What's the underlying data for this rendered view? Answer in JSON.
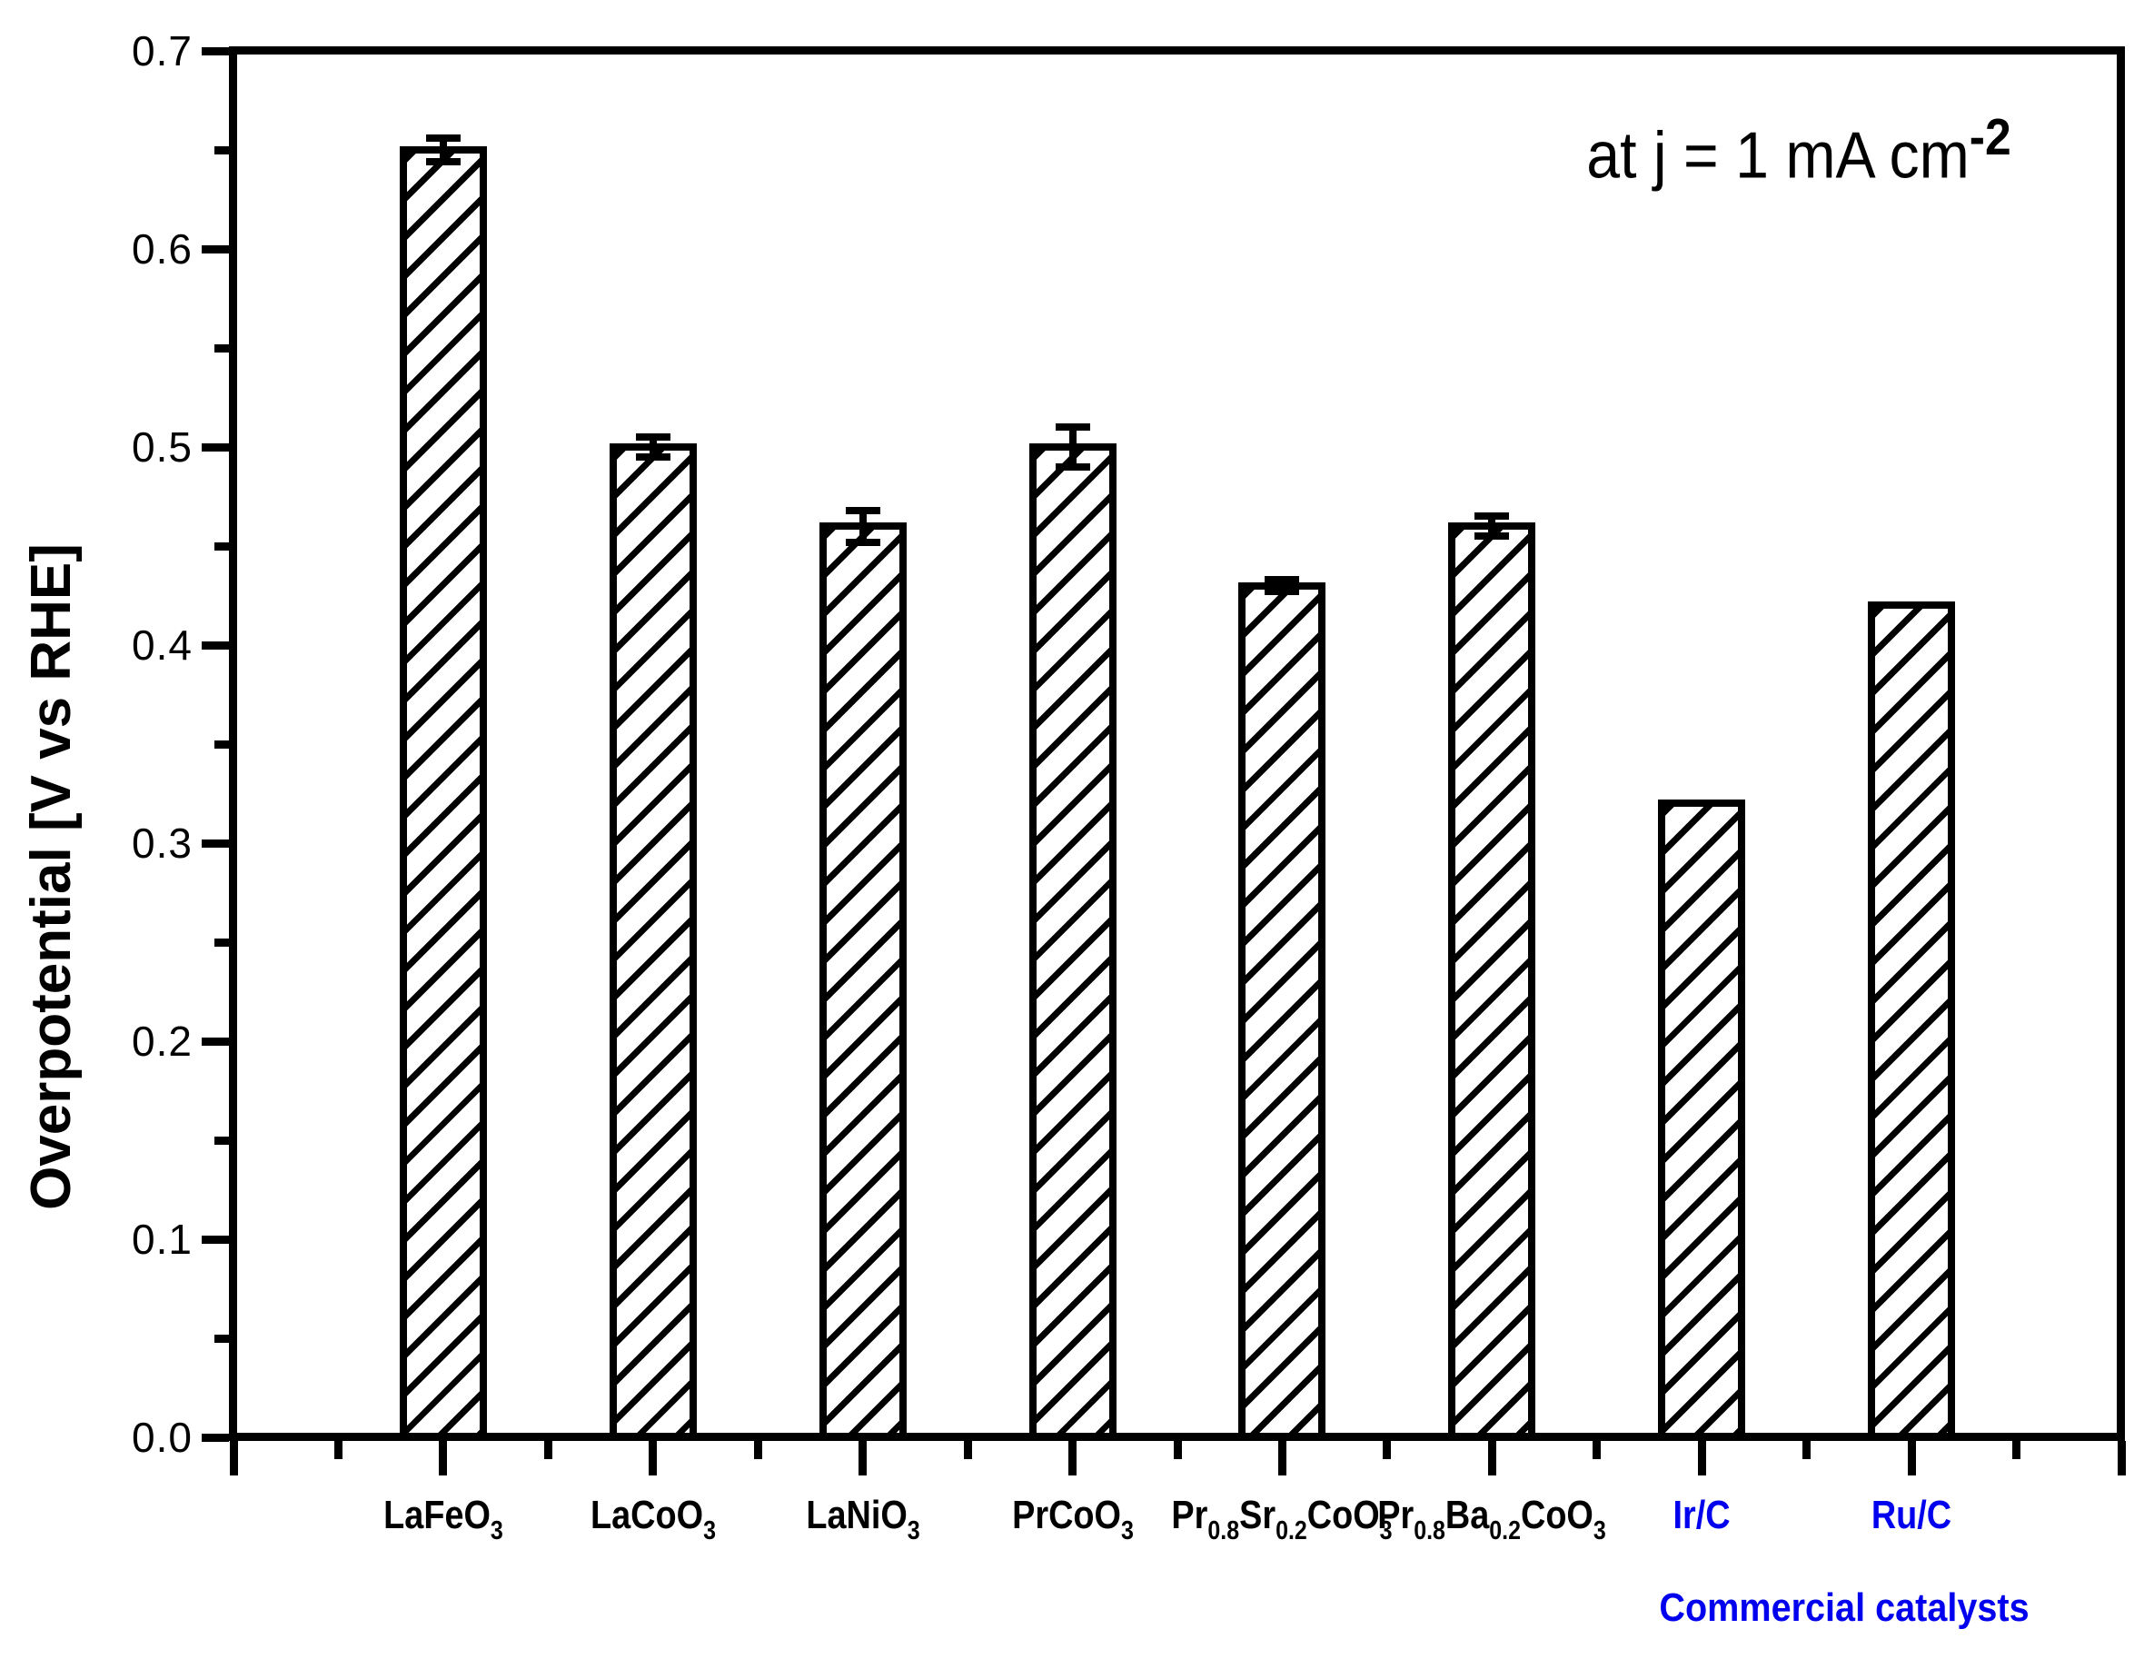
{
  "chart_data": {
    "type": "bar",
    "annotation": {
      "prefix": "at j = 1 mA cm",
      "sup": "-2"
    },
    "ylabel": "Overpotential [V vs RHE]",
    "ylim": [
      0.0,
      0.7
    ],
    "ymajor_step": 0.1,
    "yminor_step": 0.05,
    "ytick_labels": [
      "0.0",
      "0.1",
      "0.2",
      "0.3",
      "0.4",
      "0.5",
      "0.6",
      "0.7"
    ],
    "grid": false,
    "legend": "none",
    "bar_style": "diagonal-hatch",
    "categories": [
      {
        "segments": [
          {
            "t": "LaFeO"
          },
          {
            "t": "3",
            "sub": true
          }
        ]
      },
      {
        "segments": [
          {
            "t": "LaCoO"
          },
          {
            "t": "3",
            "sub": true
          }
        ]
      },
      {
        "segments": [
          {
            "t": "LaNiO"
          },
          {
            "t": "3",
            "sub": true
          }
        ]
      },
      {
        "segments": [
          {
            "t": "PrCoO"
          },
          {
            "t": "3",
            "sub": true
          }
        ]
      },
      {
        "segments": [
          {
            "t": "Pr"
          },
          {
            "t": "0.8",
            "sub": true
          },
          {
            "t": "Sr"
          },
          {
            "t": "0.2",
            "sub": true
          },
          {
            "t": "CoO"
          },
          {
            "t": "3",
            "sub": true
          }
        ]
      },
      {
        "segments": [
          {
            "t": "Pr"
          },
          {
            "t": "0.8",
            "sub": true
          },
          {
            "t": "Ba"
          },
          {
            "t": "0.2",
            "sub": true
          },
          {
            "t": "CoO"
          },
          {
            "t": "3",
            "sub": true
          }
        ]
      },
      {
        "segments": [
          {
            "t": "Ir/C"
          }
        ],
        "commercial": true
      },
      {
        "segments": [
          {
            "t": "Ru/C"
          }
        ],
        "commercial": true
      }
    ],
    "values": [
      0.65,
      0.5,
      0.46,
      0.5,
      0.43,
      0.46,
      0.32,
      0.42
    ],
    "errors": [
      0.006,
      0.005,
      0.008,
      0.01,
      0.003,
      0.005,
      null,
      null
    ],
    "group_label": "Commercial catalysts",
    "colors": {
      "bar_outline": "#000000",
      "hatch": "#000000",
      "axis": "#000000",
      "label_default": "#000000",
      "label_commercial": "#0000ee"
    }
  }
}
